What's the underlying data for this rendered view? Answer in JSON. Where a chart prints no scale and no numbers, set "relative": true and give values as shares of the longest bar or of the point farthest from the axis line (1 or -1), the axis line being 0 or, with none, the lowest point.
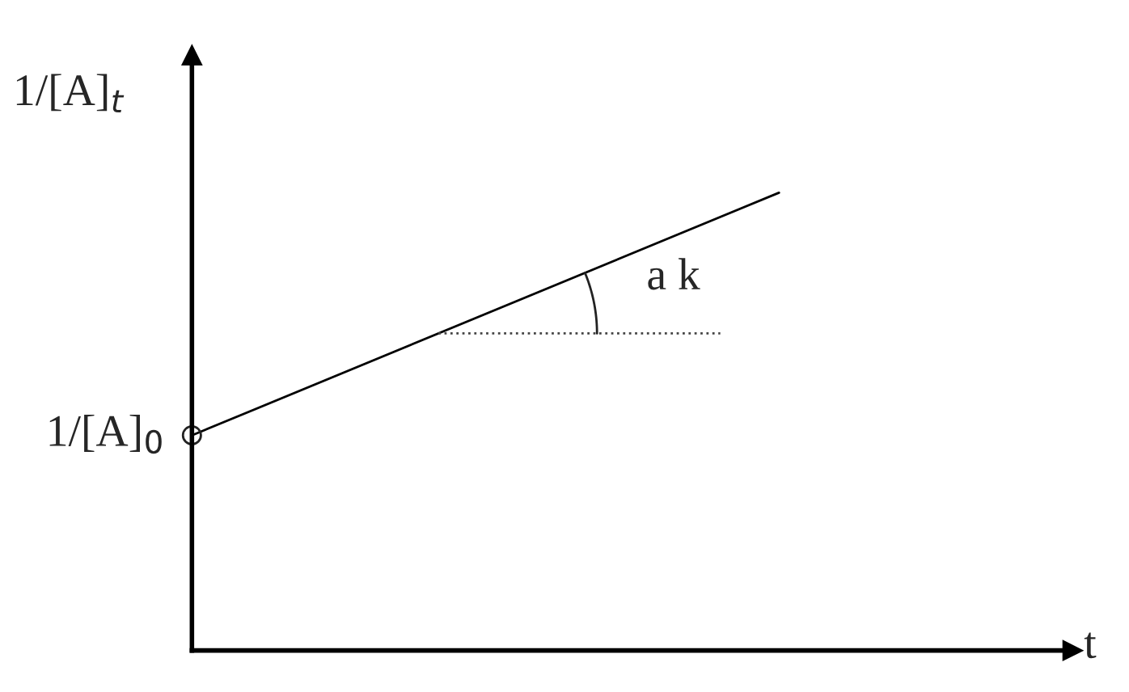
{
  "chart_data": {
    "type": "line",
    "relative": true,
    "ylabel": "1/[A]$_{t}$",
    "xlabel": "t",
    "categories": [
      null,
      null
    ],
    "series": [
      {
        "color": "#000000",
        "values": [
          0.47,
          1
        ]
      }
    ],
    "legend": false,
    "annotations": [
      "1/[A]$_{0}$",
      "a k"
    ]
  }
}
